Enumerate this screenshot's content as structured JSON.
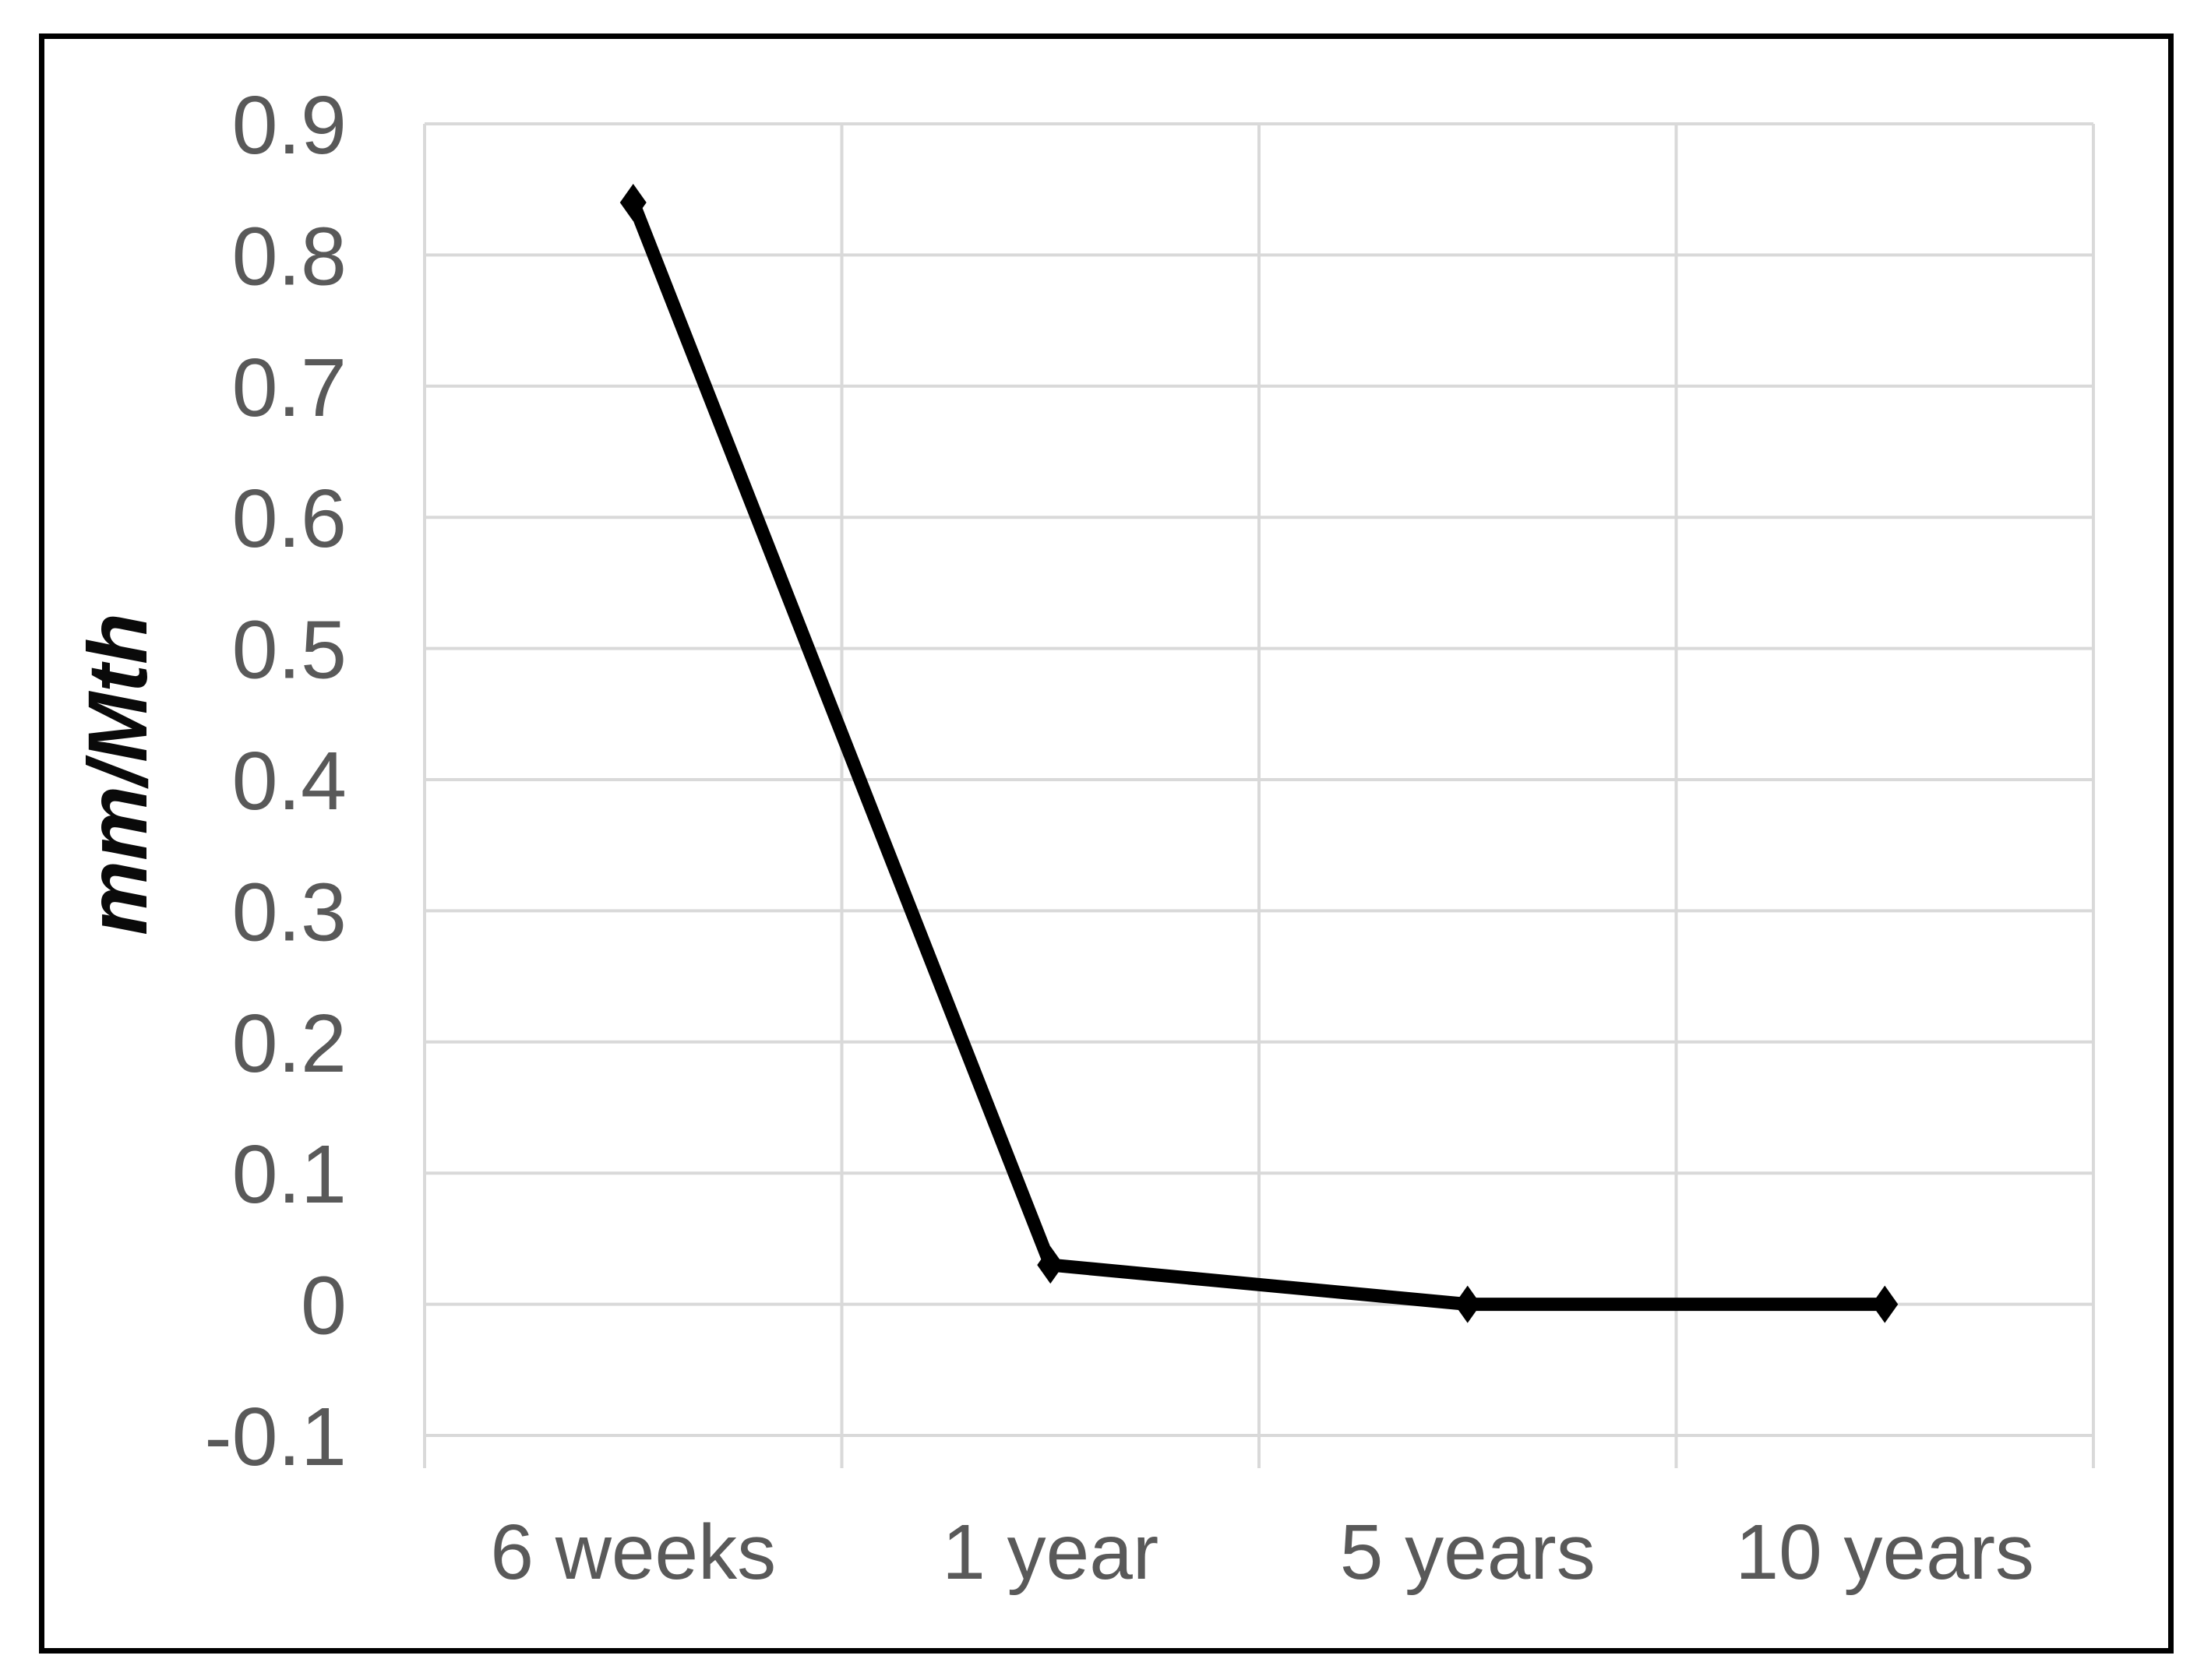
{
  "figure": {
    "background": "#ffffff",
    "border_color": "#000000"
  },
  "chart_data": {
    "type": "line",
    "title": "",
    "ylabel": "mm/Mth",
    "xlabel": "",
    "categories": [
      "6 weeks",
      "1 year",
      "5 years",
      "10 years"
    ],
    "series": [
      {
        "values": [
          0.84,
          0.03,
          0.0,
          0.0
        ]
      }
    ],
    "ylim": [
      -0.1,
      0.9
    ],
    "ytick_step": 0.1,
    "ytick_labels": [
      "0.9",
      "0.8",
      "0.7",
      "0.6",
      "0.5",
      "0.4",
      "0.3",
      "0.2",
      "0.1",
      "0",
      "-0.1"
    ],
    "grid": true,
    "legend": "none",
    "marker": "diamond",
    "line_color": "#000000",
    "gridline_color": "#d9d9d9",
    "axis_text_color": "#595959"
  }
}
